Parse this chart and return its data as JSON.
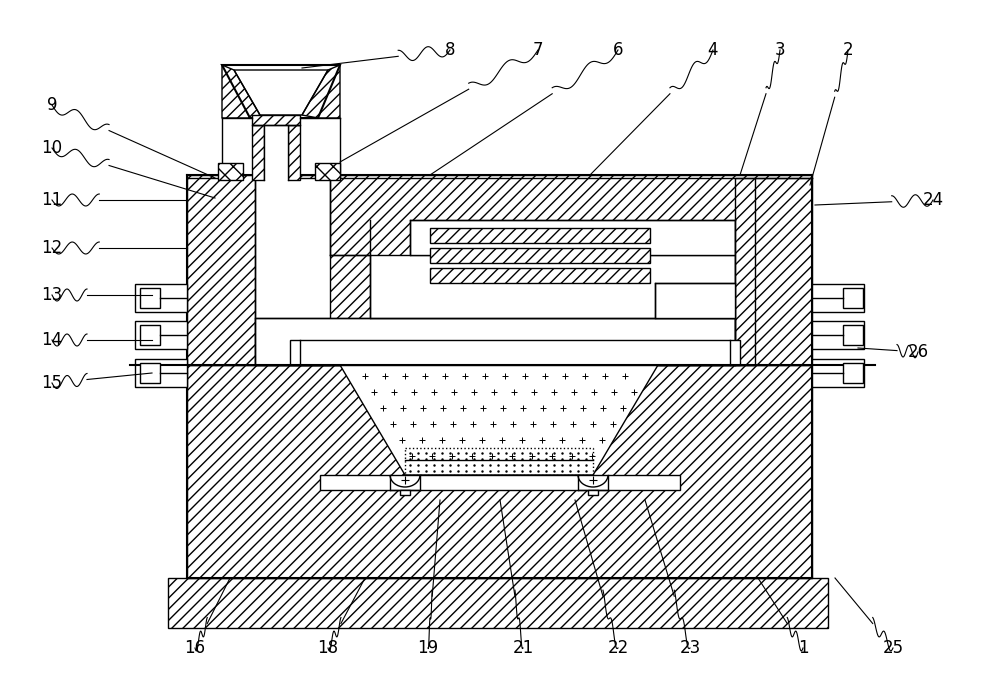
{
  "bg_color": "#ffffff",
  "line_color": "#000000",
  "fig_width": 10.0,
  "fig_height": 6.96,
  "label_data": [
    [
      "8",
      450,
      50,
      302,
      68,
      true
    ],
    [
      "7",
      538,
      50,
      340,
      162,
      true
    ],
    [
      "6",
      618,
      50,
      430,
      175,
      true
    ],
    [
      "4",
      713,
      50,
      590,
      175,
      true
    ],
    [
      "3",
      780,
      50,
      740,
      175,
      true
    ],
    [
      "2",
      848,
      50,
      810,
      185,
      true
    ],
    [
      "9",
      52,
      105,
      215,
      178,
      true
    ],
    [
      "10",
      52,
      148,
      215,
      198,
      true
    ],
    [
      "11",
      52,
      200,
      187,
      200,
      true
    ],
    [
      "12",
      52,
      248,
      187,
      248,
      true
    ],
    [
      "13",
      52,
      295,
      152,
      295,
      true
    ],
    [
      "14",
      52,
      340,
      152,
      340,
      true
    ],
    [
      "15",
      52,
      383,
      152,
      373,
      true
    ],
    [
      "16",
      195,
      648,
      230,
      578,
      false
    ],
    [
      "18",
      328,
      648,
      365,
      578,
      false
    ],
    [
      "19",
      428,
      648,
      440,
      500,
      false
    ],
    [
      "21",
      523,
      648,
      500,
      500,
      false
    ],
    [
      "22",
      618,
      648,
      575,
      500,
      false
    ],
    [
      "23",
      690,
      648,
      645,
      500,
      false
    ],
    [
      "1",
      803,
      648,
      758,
      578,
      false
    ],
    [
      "25",
      893,
      648,
      835,
      578,
      false
    ],
    [
      "24",
      933,
      200,
      815,
      205,
      true
    ],
    [
      "26",
      918,
      352,
      858,
      348,
      true
    ]
  ]
}
